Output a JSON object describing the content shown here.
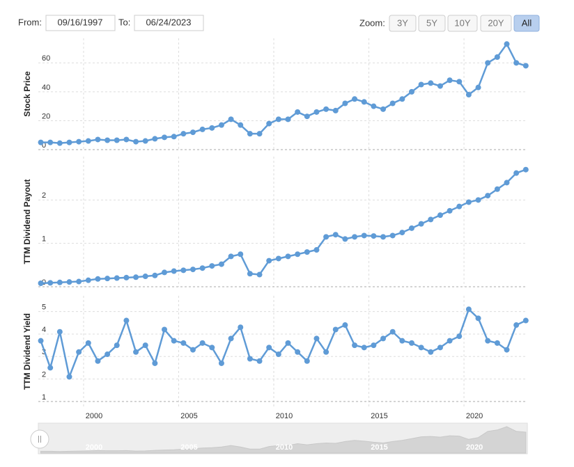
{
  "controls": {
    "from_label": "From:",
    "from_value": "09/16/1997",
    "to_label": "To:",
    "to_value": "06/24/2023",
    "zoom_label": "Zoom:",
    "zoom_buttons": [
      "3Y",
      "5Y",
      "10Y",
      "20Y",
      "All"
    ],
    "active_zoom": "All"
  },
  "chart_data": [
    {
      "type": "line",
      "ylabel": "Stock Price",
      "color": "#5f9bd6",
      "x": [
        1997.75,
        1998.25,
        1998.75,
        1999.25,
        1999.75,
        2000.25,
        2000.75,
        2001.25,
        2001.75,
        2002.25,
        2002.75,
        2003.25,
        2003.75,
        2004.25,
        2004.75,
        2005.25,
        2005.75,
        2006.25,
        2006.75,
        2007.25,
        2007.75,
        2008.25,
        2008.75,
        2009.25,
        2009.75,
        2010.25,
        2010.75,
        2011.25,
        2011.75,
        2012.25,
        2012.75,
        2013.25,
        2013.75,
        2014.25,
        2014.75,
        2015.25,
        2015.75,
        2016.25,
        2016.75,
        2017.25,
        2017.75,
        2018.25,
        2018.75,
        2019.25,
        2019.75,
        2020.25,
        2020.75,
        2021.25,
        2021.75,
        2022.25,
        2022.75,
        2023.25
      ],
      "values": [
        5,
        5,
        4.5,
        5,
        5.5,
        6,
        7,
        6.5,
        6.5,
        7,
        5.5,
        6,
        7.5,
        8.5,
        9,
        11,
        12,
        14,
        15,
        17,
        21,
        17,
        11,
        11,
        18,
        21,
        21,
        26,
        23,
        26,
        28,
        27,
        32,
        35,
        33,
        30,
        28,
        32,
        35,
        40,
        45,
        46,
        44,
        48,
        47,
        38,
        43,
        60,
        64,
        73,
        60,
        58
      ],
      "xlim": [
        1997.62,
        2023.33
      ],
      "xticks": [
        2000,
        2005,
        2010,
        2015,
        2020
      ],
      "ylim": [
        0,
        77
      ],
      "yticks": [
        0,
        20,
        40,
        60
      ],
      "grid": true
    },
    {
      "type": "line",
      "ylabel": "TTM Dividend Payout",
      "color": "#5f9bd6",
      "x": [
        1997.75,
        1998.25,
        1998.75,
        1999.25,
        1999.75,
        2000.25,
        2000.75,
        2001.25,
        2001.75,
        2002.25,
        2002.75,
        2003.25,
        2003.75,
        2004.25,
        2004.75,
        2005.25,
        2005.75,
        2006.25,
        2006.75,
        2007.25,
        2007.75,
        2008.25,
        2008.75,
        2009.25,
        2009.75,
        2010.25,
        2010.75,
        2011.25,
        2011.75,
        2012.25,
        2012.75,
        2013.25,
        2013.75,
        2014.25,
        2014.75,
        2015.25,
        2015.75,
        2016.25,
        2016.75,
        2017.25,
        2017.75,
        2018.25,
        2018.75,
        2019.25,
        2019.75,
        2020.25,
        2020.75,
        2021.25,
        2021.75,
        2022.25,
        2022.75,
        2023.25
      ],
      "values": [
        0.08,
        0.09,
        0.1,
        0.11,
        0.12,
        0.15,
        0.18,
        0.19,
        0.2,
        0.21,
        0.22,
        0.24,
        0.26,
        0.33,
        0.36,
        0.38,
        0.4,
        0.43,
        0.48,
        0.52,
        0.7,
        0.75,
        0.3,
        0.28,
        0.6,
        0.65,
        0.7,
        0.75,
        0.8,
        0.85,
        1.15,
        1.2,
        1.1,
        1.15,
        1.18,
        1.17,
        1.15,
        1.18,
        1.25,
        1.35,
        1.45,
        1.55,
        1.65,
        1.75,
        1.85,
        1.95,
        2.0,
        2.1,
        2.25,
        2.4,
        2.62,
        2.7
      ],
      "xlim": [
        1997.62,
        2023.33
      ],
      "xticks": [
        2000,
        2005,
        2010,
        2015,
        2020
      ],
      "ylim": [
        0,
        3
      ],
      "yticks": [
        0,
        1,
        2
      ],
      "grid": true
    },
    {
      "type": "line",
      "ylabel": "TTM Dividend Yield",
      "color": "#5f9bd6",
      "x": [
        1997.75,
        1998.25,
        1998.75,
        1999.25,
        1999.75,
        2000.25,
        2000.75,
        2001.25,
        2001.75,
        2002.25,
        2002.75,
        2003.25,
        2003.75,
        2004.25,
        2004.75,
        2005.25,
        2005.75,
        2006.25,
        2006.75,
        2007.25,
        2007.75,
        2008.25,
        2008.75,
        2009.25,
        2009.75,
        2010.25,
        2010.75,
        2011.25,
        2011.75,
        2012.25,
        2012.75,
        2013.25,
        2013.75,
        2014.25,
        2014.75,
        2015.25,
        2015.75,
        2016.25,
        2016.75,
        2017.25,
        2017.75,
        2018.25,
        2018.75,
        2019.25,
        2019.75,
        2020.25,
        2020.75,
        2021.25,
        2021.75,
        2022.25,
        2022.75,
        2023.25
      ],
      "values": [
        3.7,
        2.5,
        4.1,
        2.1,
        3.2,
        3.6,
        2.8,
        3.1,
        3.5,
        4.6,
        3.2,
        3.5,
        2.7,
        4.2,
        3.7,
        3.6,
        3.3,
        3.6,
        3.4,
        2.7,
        3.8,
        4.3,
        2.9,
        2.8,
        3.4,
        3.1,
        3.6,
        3.2,
        2.8,
        3.8,
        3.2,
        4.2,
        4.4,
        3.5,
        3.4,
        3.5,
        3.8,
        4.1,
        3.7,
        3.6,
        3.4,
        3.2,
        3.4,
        3.7,
        3.9,
        5.1,
        4.7,
        3.7,
        3.6,
        3.3,
        4.4,
        4.6
      ],
      "xlim": [
        1997.62,
        2023.33
      ],
      "xticks": [
        2000,
        2005,
        2010,
        2015,
        2020
      ],
      "ylim": [
        0.75,
        5.7
      ],
      "yticks": [
        1,
        2,
        3,
        4,
        5
      ],
      "grid": true
    }
  ]
}
